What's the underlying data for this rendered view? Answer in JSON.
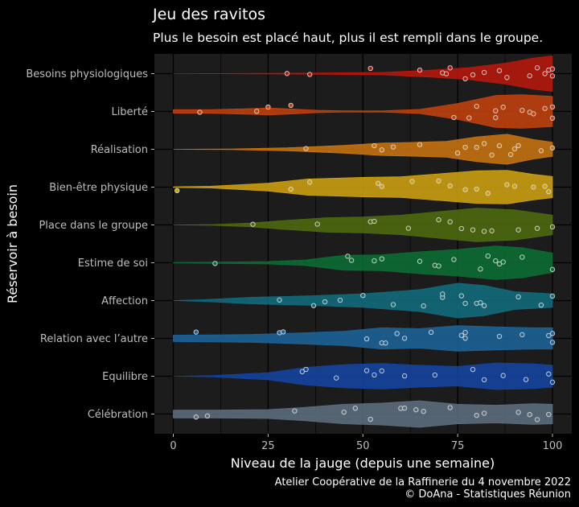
{
  "chart_data": {
    "type": "violin",
    "title": "Jeu des ravitos",
    "subtitle": "Plus le besoin est placé haut, plus il est rempli dans le groupe.",
    "xlabel": "Niveau de la jauge (depuis une semaine)",
    "ylabel": "Réservoir à besoin",
    "xlim": [
      0,
      100
    ],
    "xticks": [
      0,
      25,
      50,
      75,
      100
    ],
    "caption_lines": [
      "Atelier Coopérative de la Raffinerie du 4 novembre 2022",
      "© DoAna - Statistiques Réunion"
    ],
    "categories": [
      {
        "name": "Besoins physiologiques",
        "color": "#b8180c",
        "points": [
          30,
          36,
          52,
          65,
          71,
          72,
          73,
          77,
          79,
          82,
          86,
          88,
          94,
          96,
          98,
          99,
          100,
          100
        ],
        "density": [
          [
            0,
            0
          ],
          [
            12,
            0.004
          ],
          [
            25,
            0.015
          ],
          [
            40,
            0.035
          ],
          [
            55,
            0.07
          ],
          [
            68,
            0.2
          ],
          [
            78,
            0.34
          ],
          [
            88,
            0.6
          ],
          [
            95,
            0.88
          ],
          [
            100,
            1.0
          ]
        ]
      },
      {
        "name": "Liberté",
        "color": "#c2420d",
        "points": [
          7,
          22,
          25,
          31,
          74,
          78,
          80,
          85,
          85,
          87,
          92,
          94,
          95,
          98,
          100,
          100
        ],
        "density": [
          [
            0,
            0.1
          ],
          [
            10,
            0.1
          ],
          [
            20,
            0.16
          ],
          [
            25,
            0.2
          ],
          [
            30,
            0.15
          ],
          [
            38,
            0.07
          ],
          [
            45,
            0.04
          ],
          [
            55,
            0.03
          ],
          [
            65,
            0.12
          ],
          [
            75,
            0.45
          ],
          [
            85,
            0.9
          ],
          [
            92,
            0.95
          ],
          [
            100,
            0.85
          ]
        ]
      },
      {
        "name": "Réalisation",
        "color": "#c87410",
        "points": [
          35,
          53,
          55,
          58,
          65,
          75,
          77,
          80,
          82,
          84,
          86,
          89,
          90,
          91,
          97,
          100
        ],
        "density": [
          [
            0,
            0
          ],
          [
            15,
            0.02
          ],
          [
            30,
            0.08
          ],
          [
            45,
            0.22
          ],
          [
            55,
            0.35
          ],
          [
            65,
            0.4
          ],
          [
            72,
            0.45
          ],
          [
            80,
            0.7
          ],
          [
            88,
            0.85
          ],
          [
            95,
            0.55
          ],
          [
            100,
            0.4
          ]
        ]
      },
      {
        "name": "Bien-être physique",
        "color": "#cea212",
        "points": [
          1,
          31,
          36,
          54,
          55,
          63,
          70,
          73,
          77,
          80,
          83,
          88,
          90,
          95,
          98,
          99
        ],
        "density": [
          [
            0,
            0.02
          ],
          [
            10,
            0.05
          ],
          [
            25,
            0.22
          ],
          [
            35,
            0.45
          ],
          [
            50,
            0.55
          ],
          [
            60,
            0.58
          ],
          [
            70,
            0.75
          ],
          [
            80,
            0.92
          ],
          [
            88,
            0.95
          ],
          [
            95,
            0.72
          ],
          [
            100,
            0.6
          ]
        ]
      },
      {
        "name": "Place dans le groupe",
        "color": "#4e6b0f",
        "points": [
          21,
          38,
          52,
          53,
          62,
          70,
          73,
          76,
          79,
          82,
          84,
          91,
          96,
          100
        ],
        "density": [
          [
            0,
            0
          ],
          [
            10,
            0.02
          ],
          [
            20,
            0.1
          ],
          [
            30,
            0.26
          ],
          [
            40,
            0.4
          ],
          [
            50,
            0.45
          ],
          [
            60,
            0.55
          ],
          [
            70,
            0.75
          ],
          [
            80,
            0.95
          ],
          [
            90,
            0.85
          ],
          [
            100,
            0.55
          ]
        ]
      },
      {
        "name": "Estime de soi",
        "color": "#0d6e33",
        "points": [
          11,
          46,
          47,
          53,
          55,
          65,
          69,
          70,
          74,
          81,
          83,
          85,
          86,
          87,
          92,
          100
        ],
        "density": [
          [
            0,
            0.02
          ],
          [
            10,
            0.03
          ],
          [
            25,
            0.07
          ],
          [
            35,
            0.16
          ],
          [
            45,
            0.42
          ],
          [
            55,
            0.45
          ],
          [
            65,
            0.62
          ],
          [
            75,
            0.75
          ],
          [
            85,
            0.95
          ],
          [
            92,
            0.85
          ],
          [
            100,
            0.55
          ]
        ]
      },
      {
        "name": "Affection",
        "color": "#126c7e",
        "points": [
          28,
          37,
          40,
          44,
          50,
          58,
          66,
          71,
          71,
          76,
          77,
          80,
          81,
          82,
          91,
          97,
          100
        ],
        "density": [
          [
            0,
            0
          ],
          [
            8,
            0.05
          ],
          [
            20,
            0.18
          ],
          [
            35,
            0.26
          ],
          [
            50,
            0.38
          ],
          [
            65,
            0.62
          ],
          [
            75,
            0.98
          ],
          [
            82,
            0.85
          ],
          [
            90,
            0.5
          ],
          [
            100,
            0.38
          ]
        ]
      },
      {
        "name": "Relation avec l’autre",
        "color": "#1d6499",
        "points": [
          6,
          28,
          29,
          51,
          55,
          56,
          59,
          61,
          68,
          76,
          77,
          77,
          86,
          92,
          99,
          100,
          100
        ],
        "density": [
          [
            0,
            0.18
          ],
          [
            10,
            0.2
          ],
          [
            20,
            0.22
          ],
          [
            30,
            0.28
          ],
          [
            45,
            0.4
          ],
          [
            55,
            0.6
          ],
          [
            65,
            0.55
          ],
          [
            75,
            0.72
          ],
          [
            85,
            0.65
          ],
          [
            95,
            0.6
          ],
          [
            100,
            0.6
          ]
        ]
      },
      {
        "name": "Equilibre",
        "color": "#1544a0",
        "points": [
          34,
          35,
          43,
          51,
          53,
          55,
          61,
          69,
          79,
          82,
          87,
          93,
          99,
          100
        ],
        "density": [
          [
            0,
            0
          ],
          [
            10,
            0.03
          ],
          [
            25,
            0.2
          ],
          [
            35,
            0.5
          ],
          [
            45,
            0.65
          ],
          [
            55,
            0.72
          ],
          [
            65,
            0.62
          ],
          [
            75,
            0.55
          ],
          [
            85,
            0.75
          ],
          [
            95,
            0.7
          ],
          [
            100,
            0.62
          ]
        ]
      },
      {
        "name": "Célébration",
        "color": "#5c6e7e",
        "points": [
          6,
          9,
          32,
          45,
          48,
          52,
          60,
          61,
          64,
          66,
          73,
          80,
          82,
          91,
          94,
          96,
          99
        ],
        "density": [
          [
            0,
            0.22
          ],
          [
            10,
            0.22
          ],
          [
            25,
            0.25
          ],
          [
            35,
            0.38
          ],
          [
            45,
            0.55
          ],
          [
            55,
            0.62
          ],
          [
            65,
            0.75
          ],
          [
            75,
            0.55
          ],
          [
            85,
            0.5
          ],
          [
            95,
            0.58
          ],
          [
            100,
            0.55
          ]
        ]
      }
    ]
  }
}
